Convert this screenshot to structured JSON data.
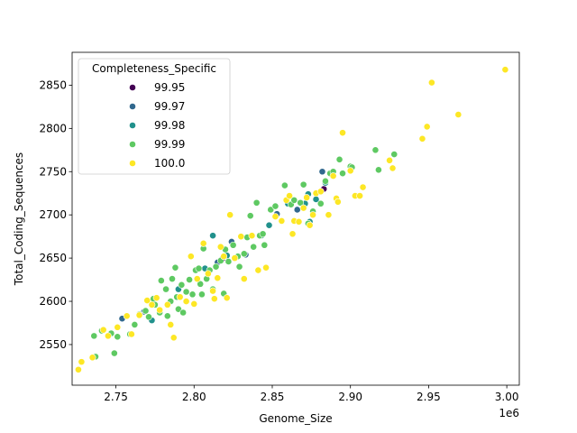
{
  "chart_data": {
    "type": "scatter",
    "xlabel": "Genome_Size",
    "ylabel": "Total_Coding_Sequences",
    "x_offset_label": "1e6",
    "x_scale": 1000000,
    "xlim": [
      2722000,
      3008000
    ],
    "ylim": [
      2503,
      2888
    ],
    "x_ticks": [
      2750000,
      2800000,
      2850000,
      2900000,
      2950000,
      3000000
    ],
    "x_tick_labels": [
      "2.75",
      "2.80",
      "2.85",
      "2.90",
      "2.95",
      "3.00"
    ],
    "y_ticks": [
      2550,
      2600,
      2650,
      2700,
      2750,
      2800,
      2850
    ],
    "y_tick_labels": [
      "2550",
      "2600",
      "2650",
      "2700",
      "2750",
      "2800",
      "2850"
    ],
    "grid": false,
    "legend": {
      "title": "Completeness_Specific",
      "placement": "top-left"
    },
    "series": [
      {
        "name": "99.95",
        "color": "#440154",
        "points": [
          [
            2816000,
            2646
          ],
          [
            2818000,
            2649
          ],
          [
            2883000,
            2730
          ]
        ]
      },
      {
        "name": "99.97",
        "color": "#31688e",
        "points": [
          [
            2754000,
            2580
          ],
          [
            2768000,
            2588
          ],
          [
            2815000,
            2645
          ],
          [
            2824000,
            2669
          ],
          [
            2833000,
            2654
          ],
          [
            2853000,
            2701
          ],
          [
            2866000,
            2706
          ],
          [
            2882000,
            2750
          ]
        ]
      },
      {
        "name": "99.98",
        "color": "#21918c",
        "points": [
          [
            2773000,
            2578
          ],
          [
            2790000,
            2614
          ],
          [
            2807000,
            2638
          ],
          [
            2812000,
            2676
          ],
          [
            2821000,
            2653
          ],
          [
            2843000,
            2676
          ],
          [
            2848000,
            2688
          ],
          [
            2860000,
            2713
          ],
          [
            2871000,
            2713
          ],
          [
            2873000,
            2724
          ],
          [
            2874000,
            2692
          ],
          [
            2878000,
            2718
          ],
          [
            2884000,
            2737
          ]
        ]
      },
      {
        "name": "99.99",
        "color": "#5ec962",
        "points": [
          [
            2736000,
            2560
          ],
          [
            2737000,
            2536
          ],
          [
            2741000,
            2566
          ],
          [
            2747000,
            2563
          ],
          [
            2749000,
            2540
          ],
          [
            2751000,
            2559
          ],
          [
            2759000,
            2562
          ],
          [
            2762000,
            2573
          ],
          [
            2765000,
            2585
          ],
          [
            2769000,
            2589
          ],
          [
            2771000,
            2582
          ],
          [
            2774000,
            2603
          ],
          [
            2775000,
            2596
          ],
          [
            2778000,
            2587
          ],
          [
            2779000,
            2624
          ],
          [
            2782000,
            2614
          ],
          [
            2783000,
            2583
          ],
          [
            2785000,
            2600
          ],
          [
            2786000,
            2626
          ],
          [
            2788000,
            2639
          ],
          [
            2789000,
            2605
          ],
          [
            2790000,
            2591
          ],
          [
            2792000,
            2619
          ],
          [
            2793000,
            2587
          ],
          [
            2795000,
            2611
          ],
          [
            2797000,
            2625
          ],
          [
            2799000,
            2608
          ],
          [
            2801000,
            2636
          ],
          [
            2803000,
            2638
          ],
          [
            2804000,
            2620
          ],
          [
            2805000,
            2608
          ],
          [
            2806000,
            2661
          ],
          [
            2808000,
            2626
          ],
          [
            2810000,
            2636
          ],
          [
            2812000,
            2614
          ],
          [
            2814000,
            2640
          ],
          [
            2817000,
            2647
          ],
          [
            2819000,
            2609
          ],
          [
            2820000,
            2660
          ],
          [
            2822000,
            2646
          ],
          [
            2825000,
            2665
          ],
          [
            2828000,
            2652
          ],
          [
            2829000,
            2640
          ],
          [
            2832000,
            2655
          ],
          [
            2834000,
            2674
          ],
          [
            2836000,
            2699
          ],
          [
            2838000,
            2663
          ],
          [
            2840000,
            2714
          ],
          [
            2842000,
            2676
          ],
          [
            2844000,
            2678
          ],
          [
            2845000,
            2665
          ],
          [
            2849000,
            2706
          ],
          [
            2852000,
            2710
          ],
          [
            2858000,
            2734
          ],
          [
            2862000,
            2712
          ],
          [
            2864000,
            2717
          ],
          [
            2868000,
            2714
          ],
          [
            2870000,
            2735
          ],
          [
            2873000,
            2690
          ],
          [
            2876000,
            2704
          ],
          [
            2881000,
            2713
          ],
          [
            2884000,
            2739
          ],
          [
            2887000,
            2748
          ],
          [
            2889000,
            2750
          ],
          [
            2893000,
            2764
          ],
          [
            2895000,
            2748
          ],
          [
            2900000,
            2756
          ],
          [
            2901000,
            2755
          ],
          [
            2916000,
            2775
          ],
          [
            2918000,
            2752
          ],
          [
            2928000,
            2770
          ]
        ]
      },
      {
        "name": "100.0",
        "color": "#fde725",
        "points": [
          [
            2726000,
            2521
          ],
          [
            2728000,
            2530
          ],
          [
            2735000,
            2535
          ],
          [
            2742000,
            2567
          ],
          [
            2745000,
            2560
          ],
          [
            2751000,
            2570
          ],
          [
            2757000,
            2583
          ],
          [
            2760000,
            2562
          ],
          [
            2765000,
            2584
          ],
          [
            2770000,
            2601
          ],
          [
            2773000,
            2596
          ],
          [
            2776000,
            2604
          ],
          [
            2778000,
            2590
          ],
          [
            2783000,
            2596
          ],
          [
            2785000,
            2573
          ],
          [
            2787000,
            2558
          ],
          [
            2791000,
            2605
          ],
          [
            2795000,
            2600
          ],
          [
            2798000,
            2652
          ],
          [
            2800000,
            2597
          ],
          [
            2802000,
            2626
          ],
          [
            2806000,
            2667
          ],
          [
            2809000,
            2632
          ],
          [
            2812000,
            2612
          ],
          [
            2813000,
            2603
          ],
          [
            2815000,
            2627
          ],
          [
            2817000,
            2663
          ],
          [
            2819000,
            2652
          ],
          [
            2821000,
            2604
          ],
          [
            2823000,
            2700
          ],
          [
            2826000,
            2650
          ],
          [
            2830000,
            2675
          ],
          [
            2832000,
            2626
          ],
          [
            2837000,
            2676
          ],
          [
            2841000,
            2636
          ],
          [
            2846000,
            2639
          ],
          [
            2852000,
            2698
          ],
          [
            2856000,
            2693
          ],
          [
            2859000,
            2717
          ],
          [
            2861000,
            2722
          ],
          [
            2863000,
            2678
          ],
          [
            2864000,
            2693
          ],
          [
            2867000,
            2692
          ],
          [
            2870000,
            2708
          ],
          [
            2872000,
            2720
          ],
          [
            2874000,
            2688
          ],
          [
            2876000,
            2700
          ],
          [
            2878000,
            2725
          ],
          [
            2881000,
            2727
          ],
          [
            2886000,
            2700
          ],
          [
            2889000,
            2745
          ],
          [
            2891000,
            2719
          ],
          [
            2892000,
            2715
          ],
          [
            2895000,
            2795
          ],
          [
            2900000,
            2751
          ],
          [
            2903000,
            2722
          ],
          [
            2906000,
            2722
          ],
          [
            2908000,
            2732
          ],
          [
            2925000,
            2763
          ],
          [
            2927000,
            2754
          ],
          [
            2946000,
            2788
          ],
          [
            2949000,
            2802
          ],
          [
            2952000,
            2853
          ],
          [
            2969000,
            2816
          ],
          [
            2999000,
            2868
          ]
        ]
      }
    ]
  }
}
